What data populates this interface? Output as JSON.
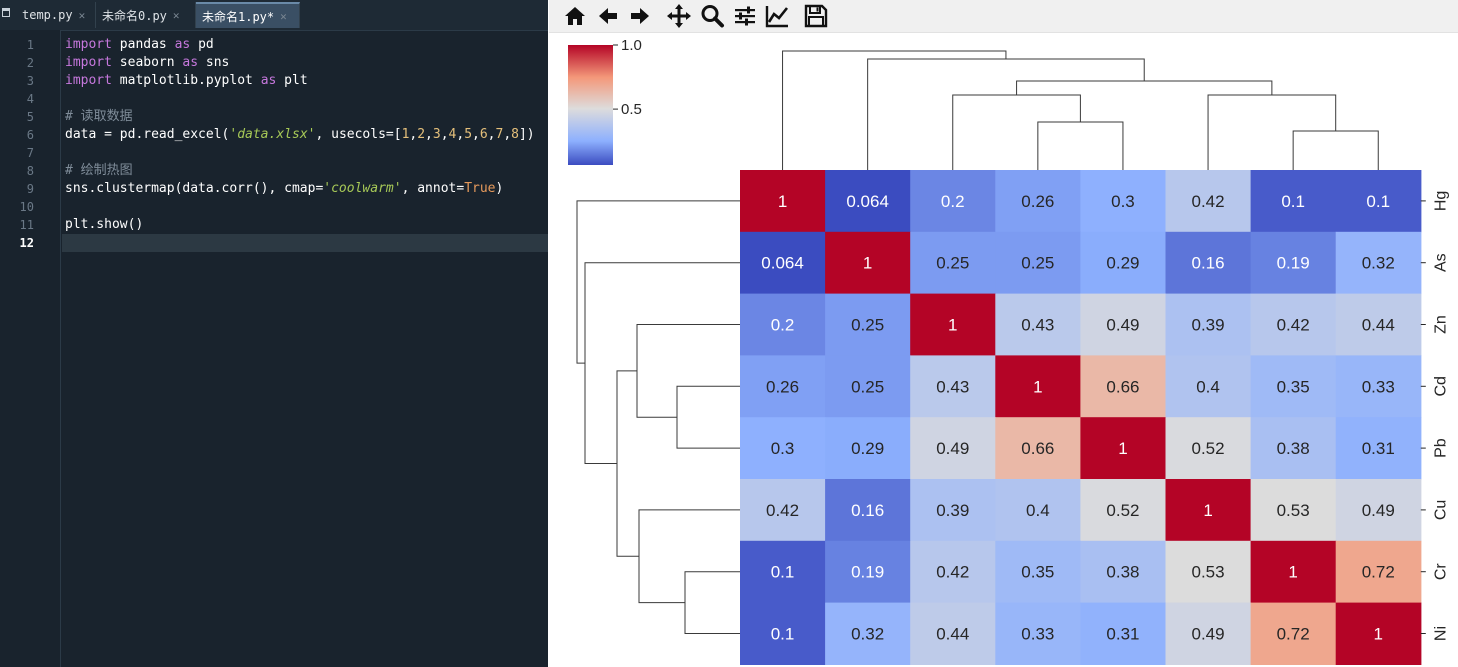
{
  "editor": {
    "tabs": [
      {
        "label": "temp.py",
        "active": false
      },
      {
        "label": "未命名0.py",
        "active": false
      },
      {
        "label": "未命名1.py*",
        "active": true
      }
    ],
    "current_line": 12,
    "lines": [
      {
        "n": "1",
        "tokens": [
          {
            "t": "import",
            "c": "kw"
          },
          {
            "t": " pandas ",
            "c": ""
          },
          {
            "t": "as",
            "c": "kw"
          },
          {
            "t": " pd",
            "c": ""
          }
        ]
      },
      {
        "n": "2",
        "tokens": [
          {
            "t": "import",
            "c": "kw"
          },
          {
            "t": " seaborn ",
            "c": ""
          },
          {
            "t": "as",
            "c": "kw"
          },
          {
            "t": " sns",
            "c": ""
          }
        ]
      },
      {
        "n": "3",
        "tokens": [
          {
            "t": "import",
            "c": "kw"
          },
          {
            "t": " matplotlib.pyplot ",
            "c": ""
          },
          {
            "t": "as",
            "c": "kw"
          },
          {
            "t": " plt",
            "c": ""
          }
        ]
      },
      {
        "n": "4",
        "tokens": []
      },
      {
        "n": "5",
        "tokens": [
          {
            "t": "# 读取数据",
            "c": "cm"
          }
        ]
      },
      {
        "n": "6",
        "tokens": [
          {
            "t": "data = pd.read_excel(",
            "c": ""
          },
          {
            "t": "'data.xlsx'",
            "c": "str"
          },
          {
            "t": ", usecols=[",
            "c": ""
          },
          {
            "t": "1",
            "c": "num"
          },
          {
            "t": ",",
            "c": ""
          },
          {
            "t": "2",
            "c": "num"
          },
          {
            "t": ",",
            "c": ""
          },
          {
            "t": "3",
            "c": "num"
          },
          {
            "t": ",",
            "c": ""
          },
          {
            "t": "4",
            "c": "num"
          },
          {
            "t": ",",
            "c": ""
          },
          {
            "t": "5",
            "c": "num"
          },
          {
            "t": ",",
            "c": ""
          },
          {
            "t": "6",
            "c": "num"
          },
          {
            "t": ",",
            "c": ""
          },
          {
            "t": "7",
            "c": "num"
          },
          {
            "t": ",",
            "c": ""
          },
          {
            "t": "8",
            "c": "num"
          },
          {
            "t": "])",
            "c": ""
          }
        ]
      },
      {
        "n": "7",
        "tokens": []
      },
      {
        "n": "8",
        "tokens": [
          {
            "t": "# 绘制热图",
            "c": "cm"
          }
        ]
      },
      {
        "n": "9",
        "tokens": [
          {
            "t": "sns.clustermap(data.corr(), cmap=",
            "c": ""
          },
          {
            "t": "'coolwarm'",
            "c": "str"
          },
          {
            "t": ", annot=",
            "c": ""
          },
          {
            "t": "True",
            "c": "const"
          },
          {
            "t": ")",
            "c": ""
          }
        ]
      },
      {
        "n": "10",
        "tokens": []
      },
      {
        "n": "11",
        "tokens": [
          {
            "t": "plt.show()",
            "c": ""
          }
        ]
      },
      {
        "n": "12",
        "tokens": []
      }
    ]
  },
  "figure": {
    "toolbar": [
      {
        "name": "home-icon",
        "tip": "Home"
      },
      {
        "name": "back-arrow-icon",
        "tip": "Back"
      },
      {
        "name": "forward-arrow-icon",
        "tip": "Forward"
      },
      {
        "name": "pan-icon",
        "tip": "Pan"
      },
      {
        "name": "zoom-icon",
        "tip": "Zoom"
      },
      {
        "name": "subplots-icon",
        "tip": "Subplots"
      },
      {
        "name": "edit-axes-icon",
        "tip": "Customize"
      },
      {
        "name": "save-icon",
        "tip": "Save"
      }
    ]
  },
  "chart_data": {
    "type": "heatmap",
    "title": "",
    "colormap": "coolwarm",
    "row_labels": [
      "Hg",
      "As",
      "Zn",
      "Cd",
      "Pb",
      "Cu",
      "Cr",
      "Ni"
    ],
    "col_labels": [],
    "values": [
      [
        1,
        0.064,
        0.2,
        0.26,
        0.3,
        0.42,
        0.1,
        0.1
      ],
      [
        0.064,
        1,
        0.25,
        0.25,
        0.29,
        0.16,
        0.19,
        0.32
      ],
      [
        0.2,
        0.25,
        1,
        0.43,
        0.49,
        0.39,
        0.42,
        0.44
      ],
      [
        0.26,
        0.25,
        0.43,
        1,
        0.66,
        0.4,
        0.35,
        0.33
      ],
      [
        0.3,
        0.29,
        0.49,
        0.66,
        1,
        0.52,
        0.38,
        0.31
      ],
      [
        0.42,
        0.16,
        0.39,
        0.4,
        0.52,
        1,
        0.53,
        0.49
      ],
      [
        0.1,
        0.19,
        0.42,
        0.35,
        0.38,
        0.53,
        1,
        0.72
      ],
      [
        0.1,
        0.32,
        0.44,
        0.33,
        0.31,
        0.49,
        0.72,
        1
      ]
    ],
    "annotations": [
      [
        "1",
        "0.064",
        "0.2",
        "0.26",
        "0.3",
        "0.42",
        "0.1",
        "0.1"
      ],
      [
        "0.064",
        "1",
        "0.25",
        "0.25",
        "0.29",
        "0.16",
        "0.19",
        "0.32"
      ],
      [
        "0.2",
        "0.25",
        "1",
        "0.43",
        "0.49",
        "0.39",
        "0.42",
        "0.44"
      ],
      [
        "0.26",
        "0.25",
        "0.43",
        "1",
        "0.66",
        "0.4",
        "0.35",
        "0.33"
      ],
      [
        "0.3",
        "0.29",
        "0.49",
        "0.66",
        "1",
        "0.52",
        "0.38",
        "0.31"
      ],
      [
        "0.42",
        "0.16",
        "0.39",
        "0.4",
        "0.52",
        "1",
        "0.53",
        "0.49"
      ],
      [
        "0.1",
        "0.19",
        "0.42",
        "0.35",
        "0.38",
        "0.53",
        "1",
        "0.72"
      ],
      [
        "0.1",
        "0.32",
        "0.44",
        "0.33",
        "0.31",
        "0.49",
        "0.72",
        "1"
      ]
    ],
    "vmin": 0.064,
    "vmax": 1,
    "colorbar": {
      "ticks": [
        1.0,
        0.5
      ],
      "tick_labels": [
        "1.0",
        "0.5"
      ]
    },
    "dendrogram": {
      "row": true,
      "col": true
    }
  }
}
